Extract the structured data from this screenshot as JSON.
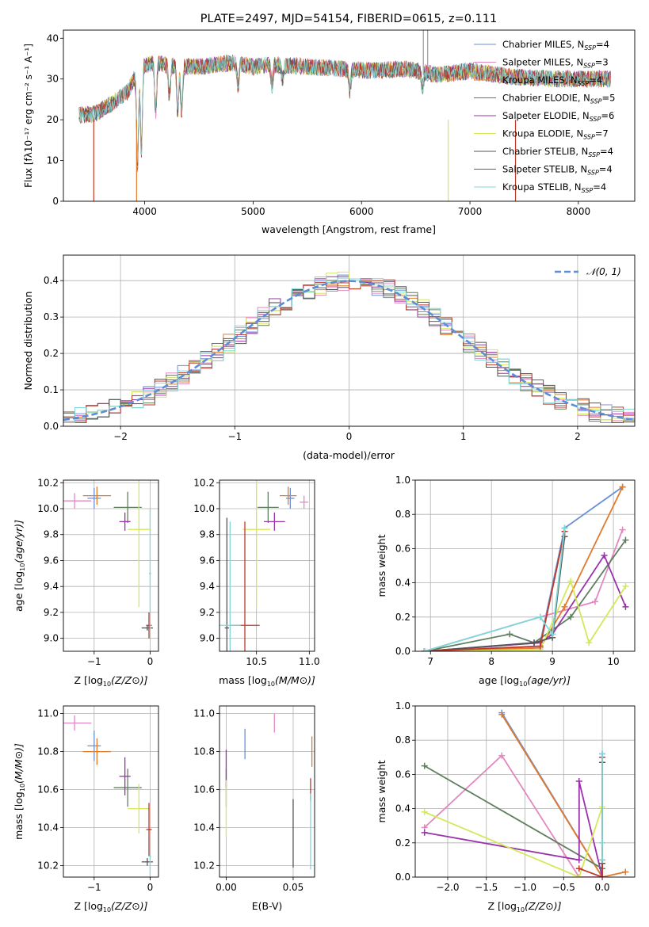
{
  "chart_data": [
    {
      "id": "spectrum",
      "type": "line",
      "title": "PLATE=2497, MJD=54154, FIBERID=0615, z=0.111",
      "xlabel": "wavelength [Angstrom, rest frame]",
      "ylabel": "Flux [fλ10⁻¹⁷ erg cm⁻² s⁻¹ A⁻¹]",
      "xlim": [
        3250,
        8520
      ],
      "ylim": [
        0,
        42
      ],
      "xticks": [
        4000,
        5000,
        6000,
        7000,
        8000
      ],
      "yticks": [
        0,
        10,
        20,
        30,
        40
      ],
      "grid": false,
      "legend_position": "top-right",
      "legend": [
        {
          "name": "Chabrier MILES, N",
          "sub": "SSP",
          "n": "=4",
          "color": "#6a8fd6"
        },
        {
          "name": "Salpeter MILES, N",
          "sub": "SSP",
          "n": "=3",
          "color": "#e288c0"
        },
        {
          "name": "Kroupa MILES, N",
          "sub": "SSP",
          "n": "=4",
          "color": "#e07b2d"
        },
        {
          "name": "Chabrier ELODIE, N",
          "sub": "SSP",
          "n": "=5",
          "color": "#5f7f5f"
        },
        {
          "name": "Salpeter ELODIE, N",
          "sub": "SSP",
          "n": "=6",
          "color": "#9933aa"
        },
        {
          "name": "Kroupa ELODIE, N",
          "sub": "SSP",
          "n": "=7",
          "color": "#d4e85a"
        },
        {
          "name": "Chabrier STELIB, N",
          "sub": "SSP",
          "n": "=4",
          "color": "#555555"
        },
        {
          "name": "Salpeter STELIB, N",
          "sub": "SSP",
          "n": "=4",
          "color": "#c0392b"
        },
        {
          "name": "Kroupa STELIB, N",
          "sub": "SSP",
          "n": "=4",
          "color": "#7fd8d8"
        }
      ],
      "continuum": [
        [
          3390,
          21
        ],
        [
          3550,
          21.5
        ],
        [
          3700,
          24
        ],
        [
          3850,
          27
        ],
        [
          3950,
          33
        ],
        [
          4100,
          34
        ],
        [
          4300,
          33
        ],
        [
          4500,
          33
        ],
        [
          4800,
          34
        ],
        [
          5000,
          33
        ],
        [
          5200,
          33.5
        ],
        [
          5500,
          33
        ],
        [
          5800,
          32.5
        ],
        [
          6100,
          32
        ],
        [
          6400,
          32.5
        ],
        [
          6700,
          31
        ],
        [
          7000,
          32
        ],
        [
          7400,
          30.5
        ],
        [
          7800,
          30
        ],
        [
          8300,
          30
        ]
      ],
      "absorption": [
        [
          3934,
          9
        ],
        [
          3969,
          12
        ],
        [
          4102,
          22
        ],
        [
          4227,
          26
        ],
        [
          4304,
          22
        ],
        [
          4340,
          22
        ],
        [
          4861,
          28
        ],
        [
          5175,
          28
        ],
        [
          5270,
          30
        ],
        [
          5893,
          27
        ],
        [
          6563,
          28
        ]
      ]
    },
    {
      "id": "residuals",
      "type": "step-histogram",
      "xlabel": "(data-model)/error",
      "ylabel": "Normed distribution",
      "xlim": [
        -2.5,
        2.5
      ],
      "ylim": [
        0,
        0.47
      ],
      "xticks": [
        -2,
        -1,
        0,
        1,
        2
      ],
      "yticks": [
        0.0,
        0.1,
        0.2,
        0.3,
        0.4
      ],
      "grid": true,
      "legend_position": "top-right",
      "gauss_label": "𝒩(0, 1)",
      "gauss_color": "#5b8dd9",
      "bin_width": 0.1
    },
    {
      "id": "age_vs_Z",
      "type": "scatter",
      "xlabel_main": "Z [log",
      "xlabel_sub": "10",
      "xlabel_rest": "(Z/Z⊙)]",
      "ylabel_main": "age  [log",
      "ylabel_sub": "10",
      "ylabel_rest": "(age/yr)]",
      "xlim": [
        -1.55,
        0.15
      ],
      "ylim": [
        8.9,
        10.22
      ],
      "xticks": [
        -1,
        0
      ],
      "yticks": [
        9.0,
        9.2,
        9.4,
        9.6,
        9.8,
        10.0,
        10.2
      ],
      "grid": true,
      "points": [
        {
          "color": "#6a8fd6",
          "x": -1.0,
          "xerr": 0.12,
          "y": 10.08,
          "yerr": 0.08
        },
        {
          "color": "#e288c0",
          "x": -1.35,
          "xerr": 0.3,
          "y": 10.06,
          "yerr": 0.06
        },
        {
          "color": "#e07b2d",
          "x": -0.95,
          "xerr": 0.25,
          "y": 10.1,
          "yerr": 0.07
        },
        {
          "color": "#5f7f5f",
          "x": -0.4,
          "xerr": 0.25,
          "y": 10.01,
          "yerr": 0.12
        },
        {
          "color": "#9933aa",
          "x": -0.45,
          "xerr": 0.1,
          "y": 9.9,
          "yerr": 0.07
        },
        {
          "color": "#d4e85a",
          "x": -0.2,
          "xerr": 0.2,
          "y": 9.84,
          "yerr": 0.6
        },
        {
          "color": "#555555",
          "x": -0.05,
          "xerr": 0.1,
          "y": 9.08,
          "yerr": 0.02
        },
        {
          "color": "#c0392b",
          "x": -0.02,
          "xerr": 0.05,
          "y": 9.1,
          "yerr": 0.1
        },
        {
          "color": "#7fd8d8",
          "x": 0.0,
          "xerr": 0.02,
          "y": 9.5,
          "yerr": 0.5
        }
      ]
    },
    {
      "id": "age_vs_mass",
      "type": "scatter",
      "xlabel_main": "mass [log",
      "xlabel_sub": "10",
      "xlabel_rest": "(M/M⊙)]",
      "xlim": [
        10.15,
        11.05
      ],
      "ylim": [
        8.9,
        10.22
      ],
      "xticks": [
        10.5,
        11.0
      ],
      "yticks": [
        9.0,
        9.2,
        9.4,
        9.6,
        9.8,
        10.0,
        10.2
      ],
      "grid": true,
      "points": [
        {
          "color": "#6a8fd6",
          "x": 10.82,
          "xerr": 0.04,
          "y": 10.08,
          "yerr": 0.08
        },
        {
          "color": "#e288c0",
          "x": 10.95,
          "xerr": 0.04,
          "y": 10.05,
          "yerr": 0.05
        },
        {
          "color": "#e07b2d",
          "x": 10.8,
          "xerr": 0.08,
          "y": 10.1,
          "yerr": 0.07
        },
        {
          "color": "#5f7f5f",
          "x": 10.61,
          "xerr": 0.1,
          "y": 10.01,
          "yerr": 0.12
        },
        {
          "color": "#9933aa",
          "x": 10.67,
          "xerr": 0.1,
          "y": 9.9,
          "yerr": 0.07
        },
        {
          "color": "#d4e85a",
          "x": 10.5,
          "xerr": 0.13,
          "y": 9.84,
          "yerr": 0.6
        },
        {
          "color": "#555555",
          "x": 10.22,
          "xerr": 0.02,
          "y": 9.08,
          "yerr": 0.85
        },
        {
          "color": "#c0392b",
          "x": 10.39,
          "xerr": 0.14,
          "y": 9.1,
          "yerr": 0.8
        },
        {
          "color": "#7fd8d8",
          "x": 10.25,
          "xerr": 0.1,
          "y": 9.1,
          "yerr": 0.8
        }
      ]
    },
    {
      "id": "weight_vs_age",
      "type": "line",
      "xlabel_main": "age  [log",
      "xlabel_sub": "10",
      "xlabel_rest": "(age/yr)]",
      "ylabel": "mass weight",
      "xlim": [
        6.75,
        10.35
      ],
      "ylim": [
        0,
        1.0
      ],
      "xticks": [
        7,
        8,
        9,
        10
      ],
      "yticks": [
        0.0,
        0.2,
        0.4,
        0.6,
        0.8,
        1.0
      ],
      "grid": true,
      "series": [
        {
          "color": "#6a8fd6",
          "x": [
            6.9,
            8.8,
            9.2,
            10.15
          ],
          "y": [
            0.0,
            0.05,
            0.72,
            0.96
          ]
        },
        {
          "color": "#e288c0",
          "x": [
            6.9,
            8.8,
            9.7,
            10.15
          ],
          "y": [
            0.0,
            0.2,
            0.29,
            0.71
          ]
        },
        {
          "color": "#e07b2d",
          "x": [
            6.9,
            8.8,
            9.2,
            10.15
          ],
          "y": [
            0.0,
            0.02,
            0.26,
            0.96
          ]
        },
        {
          "color": "#5f7f5f",
          "x": [
            6.9,
            8.3,
            8.7,
            9.3,
            10.2
          ],
          "y": [
            0.0,
            0.1,
            0.05,
            0.2,
            0.65
          ]
        },
        {
          "color": "#9933aa",
          "x": [
            6.9,
            8.8,
            9.0,
            9.85,
            10.2
          ],
          "y": [
            0.0,
            0.05,
            0.1,
            0.56,
            0.26
          ]
        },
        {
          "color": "#d4e85a",
          "x": [
            6.9,
            8.8,
            9.3,
            9.6,
            10.2
          ],
          "y": [
            0.0,
            0.01,
            0.41,
            0.05,
            0.38
          ]
        },
        {
          "color": "#555555",
          "x": [
            6.9,
            8.7,
            9.0,
            9.2
          ],
          "y": [
            0.0,
            0.05,
            0.08,
            0.67
          ]
        },
        {
          "color": "#c0392b",
          "x": [
            6.9,
            8.8,
            9.2
          ],
          "y": [
            0.0,
            0.03,
            0.7
          ]
        },
        {
          "color": "#7fd8d8",
          "x": [
            6.9,
            8.8,
            9.0,
            9.2
          ],
          "y": [
            0.0,
            0.2,
            0.1,
            0.72
          ]
        }
      ]
    },
    {
      "id": "mass_vs_Z",
      "type": "scatter",
      "xlabel_main": "Z [log",
      "xlabel_sub": "10",
      "xlabel_rest": "(Z/Z⊙)]",
      "ylabel_main": "mass [log",
      "ylabel_sub": "10",
      "ylabel_rest": "(M/M⊙)]",
      "xlim": [
        -1.55,
        0.15
      ],
      "ylim": [
        10.14,
        11.04
      ],
      "xticks": [
        -1,
        0
      ],
      "yticks": [
        10.2,
        10.4,
        10.6,
        10.8,
        11.0
      ],
      "grid": true,
      "points": [
        {
          "color": "#6a8fd6",
          "x": -1.0,
          "xerr": 0.12,
          "y": 10.83,
          "yerr": 0.08
        },
        {
          "color": "#e288c0",
          "x": -1.35,
          "xerr": 0.3,
          "y": 10.95,
          "yerr": 0.04
        },
        {
          "color": "#e07b2d",
          "x": -0.95,
          "xerr": 0.25,
          "y": 10.8,
          "yerr": 0.07
        },
        {
          "color": "#5f7f5f",
          "x": -0.4,
          "xerr": 0.25,
          "y": 10.61,
          "yerr": 0.1
        },
        {
          "color": "#9933aa",
          "x": -0.45,
          "xerr": 0.1,
          "y": 10.67,
          "yerr": 0.1
        },
        {
          "color": "#d4e85a",
          "x": -0.2,
          "xerr": 0.2,
          "y": 10.5,
          "yerr": 0.13
        },
        {
          "color": "#555555",
          "x": -0.05,
          "xerr": 0.1,
          "y": 10.22,
          "yerr": 0.02
        },
        {
          "color": "#c0392b",
          "x": -0.02,
          "xerr": 0.05,
          "y": 10.39,
          "yerr": 0.14
        },
        {
          "color": "#7fd8d8",
          "x": 0.0,
          "xerr": 0.02,
          "y": 10.25,
          "yerr": 0.1
        }
      ]
    },
    {
      "id": "mass_vs_EBV",
      "type": "scatter",
      "xlabel": "E(B-V)",
      "xlim": [
        -0.005,
        0.066
      ],
      "ylim": [
        10.14,
        11.04
      ],
      "xticks": [
        0.0,
        0.05
      ],
      "yticks": [
        10.2,
        10.4,
        10.6,
        10.8,
        11.0
      ],
      "grid": true,
      "points": [
        {
          "color": "#6a8fd6",
          "x": 0.014,
          "y": 10.84,
          "yerr": 0.08
        },
        {
          "color": "#e288c0",
          "x": 0.036,
          "y": 10.95,
          "yerr": 0.05
        },
        {
          "color": "#e07b2d",
          "x": 0.064,
          "y": 10.8,
          "yerr": 0.08
        },
        {
          "color": "#5f7f5f",
          "x": 0.0,
          "y": 10.61,
          "yerr": 0.1
        },
        {
          "color": "#9933aa",
          "x": 0.0,
          "y": 10.71,
          "yerr": 0.1
        },
        {
          "color": "#d4e85a",
          "x": 0.0,
          "y": 10.5,
          "yerr": 0.15
        },
        {
          "color": "#555555",
          "x": 0.05,
          "y": 10.37,
          "yerr": 0.18
        },
        {
          "color": "#c0392b",
          "x": 0.063,
          "y": 10.6,
          "yerr": 0.06
        },
        {
          "color": "#7fd8d8",
          "x": 0.063,
          "y": 10.38,
          "yerr": 0.2
        }
      ]
    },
    {
      "id": "weight_vs_Z",
      "type": "line",
      "xlabel_main": "Z [log",
      "xlabel_sub": "10",
      "xlabel_rest": "(Z/Z⊙)]",
      "ylabel": "mass weight",
      "xlim": [
        -2.42,
        0.42
      ],
      "ylim": [
        0,
        1.0
      ],
      "xticks": [
        -2.0,
        -1.5,
        -1.0,
        -0.5,
        0.0
      ],
      "yticks": [
        0.0,
        0.2,
        0.4,
        0.6,
        0.8,
        1.0
      ],
      "grid": true,
      "series": [
        {
          "color": "#6a8fd6",
          "x": [
            -1.3,
            0.0,
            0.0
          ],
          "y": [
            0.96,
            0.0,
            0.72
          ]
        },
        {
          "color": "#e288c0",
          "x": [
            -2.3,
            -1.3,
            -0.3,
            0.0
          ],
          "y": [
            0.29,
            0.71,
            0.0,
            0.0
          ]
        },
        {
          "color": "#e07b2d",
          "x": [
            -1.3,
            0.0,
            0.3
          ],
          "y": [
            0.95,
            0.0,
            0.03
          ]
        },
        {
          "color": "#5f7f5f",
          "x": [
            -2.3,
            0.0,
            0.0
          ],
          "y": [
            0.65,
            0.05,
            0.2
          ]
        },
        {
          "color": "#9933aa",
          "x": [
            -2.3,
            -0.3,
            -0.3,
            0.0
          ],
          "y": [
            0.26,
            0.1,
            0.56,
            0.0
          ]
        },
        {
          "color": "#d4e85a",
          "x": [
            -2.3,
            -0.3,
            0.0
          ],
          "y": [
            0.38,
            0.0,
            0.41
          ]
        },
        {
          "color": "#555555",
          "x": [
            0.0,
            0.0,
            0.0
          ],
          "y": [
            0.08,
            0.1,
            0.67
          ]
        },
        {
          "color": "#c0392b",
          "x": [
            -0.3,
            0.0,
            0.0
          ],
          "y": [
            0.05,
            0.0,
            0.7
          ]
        },
        {
          "color": "#7fd8d8",
          "x": [
            0.0,
            0.0,
            0.0
          ],
          "y": [
            0.1,
            0.2,
            0.72
          ]
        }
      ]
    }
  ]
}
